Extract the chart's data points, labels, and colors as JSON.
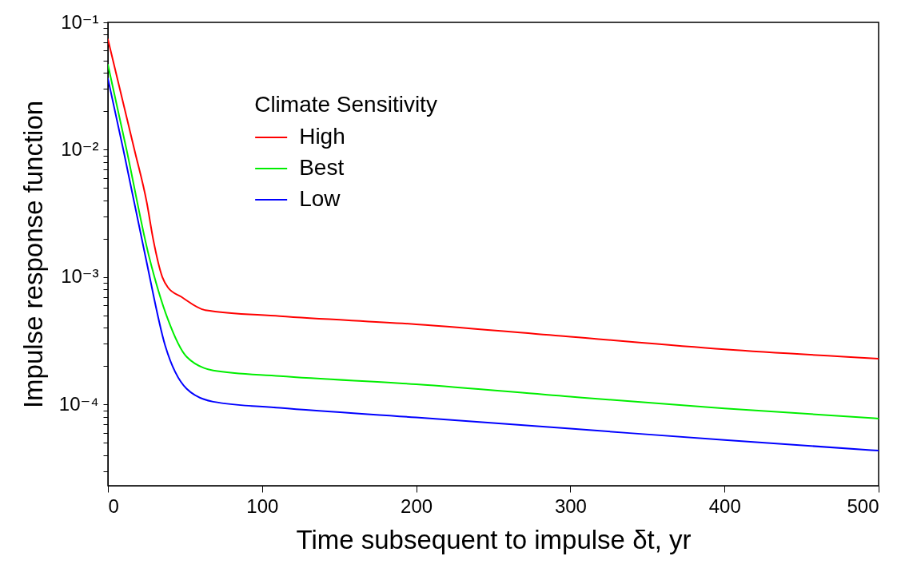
{
  "chart_data": {
    "type": "line",
    "xlabel": "Time subsequent to impulse δt, yr",
    "ylabel": "Impulse response function",
    "legend_title": "Climate Sensitivity",
    "legend": "top left",
    "log": true,
    "grid": false,
    "marker": "none",
    "line_style": "solid",
    "xlim": [
      0,
      500
    ],
    "xticks": [
      0,
      100,
      200,
      300,
      400,
      500
    ],
    "ylim": [
      2.3e-05,
      0.1
    ],
    "yticks": [
      {
        "value": 3e-05,
        "label": null
      },
      {
        "value": 4e-05,
        "label": null
      },
      {
        "value": 5e-05,
        "label": null
      },
      {
        "value": 6e-05,
        "label": null
      },
      {
        "value": 7e-05,
        "label": null
      },
      {
        "value": 8e-05,
        "label": null
      },
      {
        "value": 9e-05,
        "label": null
      },
      {
        "value": 0.0001,
        "label": "10⁻⁴"
      },
      {
        "value": 0.0002,
        "label": null
      },
      {
        "value": 0.0003,
        "label": null
      },
      {
        "value": 0.0004,
        "label": null
      },
      {
        "value": 0.0005,
        "label": null
      },
      {
        "value": 0.0006,
        "label": null
      },
      {
        "value": 0.0007,
        "label": null
      },
      {
        "value": 0.0008,
        "label": null
      },
      {
        "value": 0.0009,
        "label": null
      },
      {
        "value": 0.001,
        "label": "10⁻³"
      },
      {
        "value": 0.002,
        "label": null
      },
      {
        "value": 0.003,
        "label": null
      },
      {
        "value": 0.004,
        "label": null
      },
      {
        "value": 0.005,
        "label": null
      },
      {
        "value": 0.006,
        "label": null
      },
      {
        "value": 0.007,
        "label": null
      },
      {
        "value": 0.008,
        "label": null
      },
      {
        "value": 0.009,
        "label": null
      },
      {
        "value": 0.01,
        "label": "10⁻²"
      },
      {
        "value": 0.02,
        "label": null
      },
      {
        "value": 0.03,
        "label": null
      },
      {
        "value": 0.04,
        "label": null
      },
      {
        "value": 0.05,
        "label": null
      },
      {
        "value": 0.06,
        "label": null
      },
      {
        "value": 0.07,
        "label": null
      },
      {
        "value": 0.08,
        "label": null
      },
      {
        "value": 0.09,
        "label": null
      },
      {
        "value": 0.1,
        "label": "10⁻¹"
      }
    ],
    "series": [
      {
        "name": "High",
        "color": "#ff0000",
        "x": [
          0,
          17.2,
          25.2,
          29.4,
          35.3,
          38.9,
          47.6,
          63.1,
          111.5,
          200,
          300,
          400,
          500
        ],
        "values": [
          0.0735,
          0.01,
          0.00386,
          0.00197,
          0.001,
          0.00083,
          0.0007,
          0.00055,
          0.000493,
          0.000426,
          0.00034,
          0.000271,
          0.000229
        ]
      },
      {
        "name": "Best",
        "color": "#00ee00",
        "x": [
          0,
          12.1,
          26.5,
          38.9,
          51,
          68.3,
          111.5,
          200,
          300,
          400,
          500
        ],
        "values": [
          0.0465,
          0.01,
          0.00148,
          0.000466,
          0.000237,
          0.000185,
          0.000167,
          0.000144,
          0.000115,
          9.3e-05,
          7.75e-05
        ]
      },
      {
        "name": "Low",
        "color": "#0000ff",
        "x": [
          0,
          10,
          24.2,
          37.2,
          51,
          68.3,
          111.5,
          200,
          300,
          400,
          500
        ],
        "values": [
          0.0362,
          0.01,
          0.00148,
          0.000288,
          0.000133,
          0.000105,
          9.4e-05,
          7.9e-05,
          6.45e-05,
          5.25e-05,
          4.34e-05
        ]
      }
    ]
  }
}
